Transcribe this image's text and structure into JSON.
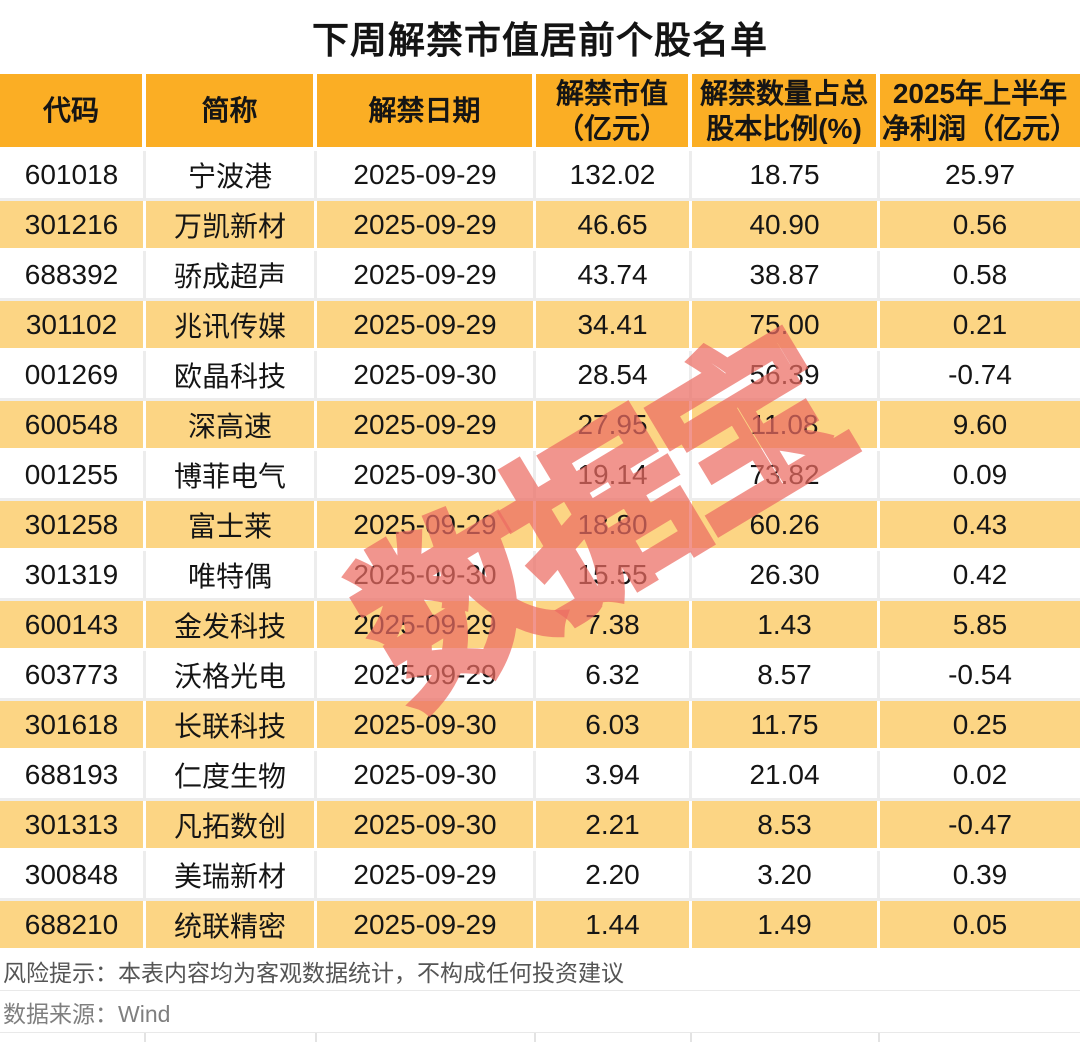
{
  "page_title": "下周解禁市值居前个股名单",
  "watermark": {
    "text": "数据宝",
    "color": "#EC6C62",
    "opacity": 0.72
  },
  "colors": {
    "header_bg": "#FBAE24",
    "alt_row_bg": "#FCD584",
    "row_bg": "#FFFFFF",
    "title_text": "#141414",
    "body_text": "#151515",
    "note_text": "#555555",
    "source_text": "#7F7F7F"
  },
  "chart_data": {
    "type": "table",
    "title": "下周解禁市值居前个股名单",
    "columns": [
      "代码",
      "简称",
      "解禁日期",
      "解禁市值\n（亿元）",
      "解禁数量占总\n股本比例(%)",
      "2025年上半年\n净利润（亿元）"
    ],
    "rows": [
      [
        "601018",
        "宁波港",
        "2025-09-29",
        "132.02",
        "18.75",
        "25.97"
      ],
      [
        "301216",
        "万凯新材",
        "2025-09-29",
        "46.65",
        "40.90",
        "0.56"
      ],
      [
        "688392",
        "骄成超声",
        "2025-09-29",
        "43.74",
        "38.87",
        "0.58"
      ],
      [
        "301102",
        "兆讯传媒",
        "2025-09-29",
        "34.41",
        "75.00",
        "0.21"
      ],
      [
        "001269",
        "欧晶科技",
        "2025-09-30",
        "28.54",
        "56.39",
        "-0.74"
      ],
      [
        "600548",
        "深高速",
        "2025-09-29",
        "27.95",
        "11.08",
        "9.60"
      ],
      [
        "001255",
        "博菲电气",
        "2025-09-30",
        "19.14",
        "73.82",
        "0.09"
      ],
      [
        "301258",
        "富士莱",
        "2025-09-29",
        "18.80",
        "60.26",
        "0.43"
      ],
      [
        "301319",
        "唯特偶",
        "2025-09-30",
        "15.55",
        "26.30",
        "0.42"
      ],
      [
        "600143",
        "金发科技",
        "2025-09-29",
        "7.38",
        "1.43",
        "5.85"
      ],
      [
        "603773",
        "沃格光电",
        "2025-09-29",
        "6.32",
        "8.57",
        "-0.54"
      ],
      [
        "301618",
        "长联科技",
        "2025-09-30",
        "6.03",
        "11.75",
        "0.25"
      ],
      [
        "688193",
        "仁度生物",
        "2025-09-30",
        "3.94",
        "21.04",
        "0.02"
      ],
      [
        "301313",
        "凡拓数创",
        "2025-09-30",
        "2.21",
        "8.53",
        "-0.47"
      ],
      [
        "300848",
        "美瑞新材",
        "2025-09-29",
        "2.20",
        "3.20",
        "0.39"
      ],
      [
        "688210",
        "统联精密",
        "2025-09-29",
        "1.44",
        "1.49",
        "0.05"
      ]
    ]
  },
  "footer": {
    "risk_note": "风险提示：本表内容均为客观数据统计，不构成任何投资建议",
    "data_source": "数据来源：Wind"
  }
}
